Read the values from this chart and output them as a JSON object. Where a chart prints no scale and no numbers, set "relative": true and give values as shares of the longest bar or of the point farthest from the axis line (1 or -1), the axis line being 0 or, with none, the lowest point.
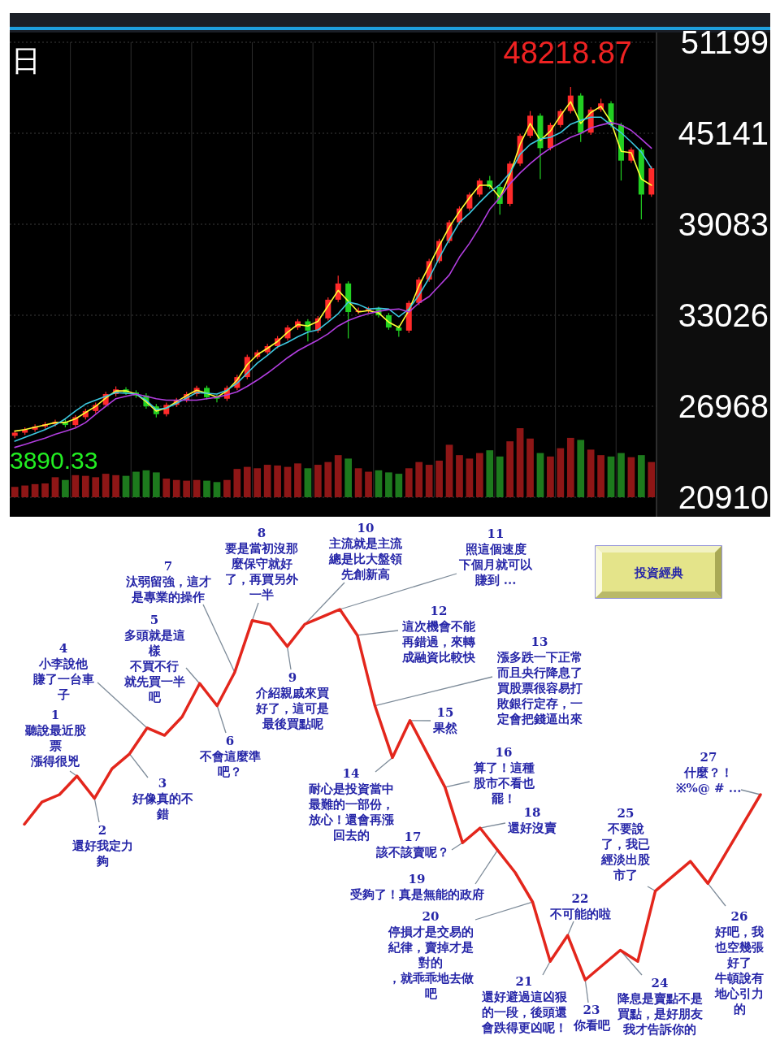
{
  "chart_data": [
    {
      "type": "candlestick",
      "categories": [
        null,
        null,
        null,
        null,
        null,
        null,
        null,
        null,
        null,
        null,
        null,
        null,
        null,
        null,
        null,
        null,
        null,
        null,
        null,
        null,
        null,
        null,
        null,
        null,
        null,
        null,
        null,
        null,
        null,
        null,
        null,
        null,
        null,
        null,
        null,
        null,
        null,
        null,
        null,
        null,
        null,
        null,
        null,
        null,
        null,
        null,
        null,
        null,
        null,
        null,
        null,
        null,
        null,
        null,
        null,
        null,
        null,
        null,
        null,
        null,
        null,
        null,
        null,
        null
      ],
      "ohlc": [
        [
          25000,
          25360,
          24850,
          25210
        ],
        [
          25210,
          25560,
          25060,
          25410
        ],
        [
          25410,
          25770,
          25260,
          25620
        ],
        [
          25620,
          25920,
          25470,
          25770
        ],
        [
          25770,
          26080,
          25620,
          25930
        ],
        [
          25930,
          26080,
          25570,
          25720
        ],
        [
          25720,
          26390,
          25570,
          26240
        ],
        [
          26240,
          26800,
          26090,
          26650
        ],
        [
          26650,
          27210,
          26500,
          27060
        ],
        [
          27060,
          27930,
          26910,
          27780
        ],
        [
          27780,
          28290,
          27630,
          28090
        ],
        [
          28090,
          28240,
          27730,
          27880
        ],
        [
          27880,
          28030,
          27530,
          27680
        ],
        [
          27680,
          27830,
          26810,
          26960
        ],
        [
          26960,
          27110,
          26230,
          26440
        ],
        [
          26440,
          27210,
          26290,
          27060
        ],
        [
          27060,
          27520,
          26910,
          27370
        ],
        [
          27370,
          27930,
          27220,
          27780
        ],
        [
          27780,
          28340,
          27630,
          28190
        ],
        [
          28190,
          28340,
          27420,
          27570
        ],
        [
          27570,
          27720,
          27220,
          27470
        ],
        [
          27470,
          28340,
          27320,
          28190
        ],
        [
          28190,
          29060,
          28040,
          28910
        ],
        [
          28910,
          30400,
          28760,
          30250
        ],
        [
          30250,
          30710,
          30100,
          30560
        ],
        [
          30560,
          31120,
          30410,
          30970
        ],
        [
          30970,
          31640,
          30820,
          31490
        ],
        [
          31490,
          32360,
          31340,
          32210
        ],
        [
          32210,
          32770,
          32060,
          32620
        ],
        [
          32620,
          32770,
          31280,
          32000
        ],
        [
          32000,
          32970,
          31850,
          32820
        ],
        [
          32820,
          34210,
          32670,
          34060
        ],
        [
          34060,
          35660,
          33910,
          35140
        ],
        [
          35140,
          35290,
          31490,
          33240
        ],
        [
          33240,
          33540,
          33090,
          33340
        ],
        [
          33340,
          33590,
          33190,
          33440
        ],
        [
          33440,
          33590,
          32880,
          33030
        ],
        [
          33030,
          33180,
          32060,
          32210
        ],
        [
          32210,
          32360,
          31590,
          32000
        ],
        [
          32000,
          34000,
          31850,
          33850
        ],
        [
          33850,
          35550,
          33700,
          35400
        ],
        [
          35400,
          36780,
          35250,
          36630
        ],
        [
          36630,
          38120,
          36480,
          37970
        ],
        [
          37970,
          39360,
          37820,
          39210
        ],
        [
          39210,
          40280,
          39060,
          40130
        ],
        [
          40130,
          41210,
          39980,
          41060
        ],
        [
          41060,
          42140,
          40910,
          41990
        ],
        [
          41990,
          42300,
          41420,
          41570
        ],
        [
          41570,
          41720,
          39720,
          40440
        ],
        [
          40440,
          43270,
          40290,
          43120
        ],
        [
          43120,
          45120,
          42970,
          44970
        ],
        [
          44970,
          46620,
          44820,
          46310
        ],
        [
          46310,
          46460,
          42090,
          44150
        ],
        [
          44150,
          45840,
          44000,
          45690
        ],
        [
          45690,
          46770,
          45540,
          46620
        ],
        [
          46620,
          48218.87,
          46470,
          47650
        ],
        [
          47650,
          47800,
          44560,
          45180
        ],
        [
          45180,
          46870,
          45030,
          46720
        ],
        [
          46720,
          47440,
          46570,
          47130
        ],
        [
          47130,
          47280,
          45540,
          45690
        ],
        [
          45690,
          45840,
          41990,
          43320
        ],
        [
          43320,
          44200,
          43170,
          44050
        ],
        [
          44050,
          44200,
          39410,
          41060
        ],
        [
          41060,
          42960,
          40910,
          42810
        ]
      ],
      "colors": [
        "#ff2a2a",
        "#ff2a2a",
        "#ff2a2a",
        "#ff2a2a",
        "#ff2a2a",
        "#22d022",
        "#ff2a2a",
        "#ff2a2a",
        "#ff2a2a",
        "#ff2a2a",
        "#ff2a2a",
        "#22d022",
        "#22d022",
        "#22d022",
        "#22d022",
        "#ff2a2a",
        "#ff2a2a",
        "#ff2a2a",
        "#ff2a2a",
        "#22d022",
        "#22d022",
        "#ff2a2a",
        "#ff2a2a",
        "#ff2a2a",
        "#ff2a2a",
        "#ff2a2a",
        "#ff2a2a",
        "#ff2a2a",
        "#ff2a2a",
        "#22d022",
        "#ff2a2a",
        "#ff2a2a",
        "#ff2a2a",
        "#22d022",
        "#ff2a2a",
        "#ff2a2a",
        "#22d022",
        "#22d022",
        "#22d022",
        "#ff2a2a",
        "#ff2a2a",
        "#ff2a2a",
        "#ff2a2a",
        "#ff2a2a",
        "#ff2a2a",
        "#ff2a2a",
        "#ff2a2a",
        "#22d022",
        "#22d022",
        "#ff2a2a",
        "#ff2a2a",
        "#ff2a2a",
        "#22d022",
        "#ff2a2a",
        "#ff2a2a",
        "#ff2a2a",
        "#22d022",
        "#ff2a2a",
        "#ff2a2a",
        "#22d022",
        "#22d022",
        "#ff2a2a",
        "#22d022",
        "#ff2a2a"
      ],
      "series": [
        {
          "type": "line",
          "color": "#ffff33",
          "values": [
            25310,
            25410,
            25570,
            25720,
            25880,
            25880,
            26130,
            26550,
            26960,
            27520,
            27990,
            27990,
            27780,
            27270,
            26650,
            26850,
            27270,
            27680,
            28040,
            27830,
            27570,
            27990,
            28710,
            29740,
            30400,
            30820,
            31280,
            31900,
            32410,
            32310,
            32620,
            33650,
            34680,
            33960,
            33240,
            33340,
            33180,
            32570,
            32210,
            33340,
            34990,
            36320,
            37660,
            38900,
            39930,
            40850,
            41680,
            41680,
            40850,
            42400,
            44400,
            45790,
            44660,
            45280,
            46310,
            47240,
            45790,
            46520,
            46930,
            45900,
            43940,
            43840,
            42090,
            41680
          ]
        },
        {
          "type": "line",
          "color": "#3cc8e0",
          "values": [
            24640,
            24900,
            25160,
            25410,
            25720,
            26130,
            26650,
            27110,
            27370,
            27630,
            27880,
            27830,
            27780,
            27370,
            26750,
            26850,
            27160,
            27520,
            27880,
            27830,
            27780,
            28040,
            28500,
            29170,
            29840,
            30350,
            30920,
            31230,
            31590,
            31900,
            32050,
            32570,
            33130,
            33900,
            33750,
            33440,
            33490,
            33440,
            32930,
            33440,
            34370,
            35500,
            36840,
            38070,
            39210,
            39820,
            40540,
            41210,
            41730,
            42500,
            43740,
            44400,
            44760,
            44870,
            45180,
            45740,
            46000,
            46210,
            46210,
            45690,
            45180,
            44560,
            43890,
            42810
          ]
        },
        {
          "type": "line",
          "color": "#b23ee0",
          "values": [
            24230,
            24430,
            24640,
            24850,
            25100,
            25310,
            25520,
            25880,
            26440,
            26960,
            27470,
            27630,
            27780,
            27630,
            27470,
            27370,
            27370,
            27370,
            27370,
            27470,
            27570,
            27730,
            27930,
            28290,
            28710,
            29170,
            29680,
            30200,
            30660,
            31020,
            31380,
            31790,
            32310,
            32670,
            32930,
            33130,
            33290,
            33390,
            33440,
            33240,
            33850,
            34270,
            34990,
            35710,
            36890,
            37820,
            38900,
            40080,
            40850,
            41780,
            42500,
            43120,
            43680,
            44150,
            44510,
            44870,
            45130,
            45490,
            45690,
            45850,
            45690,
            45330,
            44760,
            44150
          ]
        }
      ],
      "ylim": [
        20910,
        51199
      ],
      "yticks": [
        51199,
        45141,
        39083,
        33026,
        26968,
        20910
      ],
      "grid": true,
      "annotations": [
        "日",
        "48218.87",
        "3890.33"
      ]
    },
    {
      "type": "bar",
      "relative": true,
      "categories": [
        null,
        null,
        null,
        null,
        null,
        null,
        null,
        null,
        null,
        null,
        null,
        null,
        null,
        null,
        null,
        null,
        null,
        null,
        null,
        null,
        null,
        null,
        null,
        null,
        null,
        null,
        null,
        null,
        null,
        null,
        null,
        null,
        null,
        null,
        null,
        null,
        null,
        null,
        null,
        null,
        null,
        null,
        null,
        null,
        null,
        null,
        null,
        null,
        null,
        null,
        null,
        null,
        null,
        null,
        null,
        null,
        null,
        null,
        null,
        null,
        null,
        null,
        null,
        null
      ],
      "values": [
        0.15,
        0.17,
        0.19,
        0.2,
        0.29,
        0.25,
        0.32,
        0.31,
        0.29,
        0.34,
        0.32,
        0.31,
        0.37,
        0.39,
        0.36,
        0.27,
        0.25,
        0.24,
        0.25,
        0.24,
        0.22,
        0.25,
        0.41,
        0.44,
        0.42,
        0.47,
        0.46,
        0.44,
        0.49,
        0.42,
        0.47,
        0.51,
        0.61,
        0.56,
        0.42,
        0.37,
        0.39,
        0.36,
        0.34,
        0.42,
        0.51,
        0.47,
        0.53,
        0.76,
        0.61,
        0.56,
        0.64,
        0.68,
        0.59,
        0.81,
        1,
        0.85,
        0.64,
        0.59,
        0.71,
        0.86,
        0.83,
        0.69,
        0.61,
        0.59,
        0.64,
        0.58,
        0.61,
        0.51
      ],
      "colors": [
        "#8e1616",
        "#8e1616",
        "#8e1616",
        "#8e1616",
        "#8e1616",
        "#1d7a1d",
        "#8e1616",
        "#8e1616",
        "#8e1616",
        "#8e1616",
        "#8e1616",
        "#1d7a1d",
        "#1d7a1d",
        "#1d7a1d",
        "#1d7a1d",
        "#8e1616",
        "#8e1616",
        "#8e1616",
        "#8e1616",
        "#1d7a1d",
        "#1d7a1d",
        "#8e1616",
        "#8e1616",
        "#8e1616",
        "#8e1616",
        "#8e1616",
        "#8e1616",
        "#8e1616",
        "#8e1616",
        "#1d7a1d",
        "#8e1616",
        "#8e1616",
        "#8e1616",
        "#1d7a1d",
        "#8e1616",
        "#8e1616",
        "#1d7a1d",
        "#1d7a1d",
        "#1d7a1d",
        "#8e1616",
        "#8e1616",
        "#8e1616",
        "#8e1616",
        "#8e1616",
        "#8e1616",
        "#8e1616",
        "#8e1616",
        "#1d7a1d",
        "#1d7a1d",
        "#8e1616",
        "#8e1616",
        "#8e1616",
        "#1d7a1d",
        "#8e1616",
        "#8e1616",
        "#8e1616",
        "#1d7a1d",
        "#8e1616",
        "#8e1616",
        "#1d7a1d",
        "#1d7a1d",
        "#8e1616",
        "#1d7a1d",
        "#8e1616"
      ]
    },
    {
      "type": "line",
      "relative": true,
      "title": "投資經典",
      "categories": [
        null,
        null,
        null,
        null,
        null,
        null,
        null,
        null,
        null,
        null,
        null,
        null,
        null,
        null,
        null,
        null,
        null,
        null,
        null,
        null,
        null,
        null,
        null,
        null,
        null,
        null,
        null,
        null,
        null,
        null,
        null,
        null,
        null,
        null,
        null,
        null,
        null,
        null,
        null,
        null,
        null,
        null,
        null
      ],
      "series": [
        {
          "color": "#e3261c",
          "values": [
            0.42,
            0.48,
            0.5,
            0.55,
            0.49,
            0.57,
            0.61,
            0.68,
            0.66,
            0.71,
            0.8,
            0.74,
            0.83,
            0.97,
            0.96,
            0.9,
            0.96,
            0.98,
            1,
            0.93,
            0.74,
            0.6,
            0.7,
            0.61,
            0.52,
            0.37,
            0.41,
            0.35,
            0.29,
            0.21,
            0.05,
            0.12,
            0,
            0.04,
            0.08,
            0.05,
            0.24,
            0.28,
            0.32,
            0.26,
            0.34,
            0.42,
            0.5
          ]
        }
      ],
      "annotations": [
        "1",
        "聽說最近股票漲得很兇",
        "2",
        "還好我定力夠",
        "3",
        "好像真的不錯",
        "4",
        "小李說他賺了一台車子",
        "5",
        "多頭就是這樣不買不行就先買一半吧",
        "6",
        "不會這麼準吧？",
        "7",
        "汰弱留強，這才是專業的操作",
        "8",
        "要是當初沒那麼保守就好了，再買另外一半",
        "9",
        "介紹親戚來買好了，這可是最後買點呢",
        "10",
        "主流就是主流總是比大盤領先創新高",
        "11",
        "照這個速度下個月就可以賺到 ...",
        "12",
        "這次機會不能再錯過，來轉成融資比較快",
        "13",
        "漲多跌一下正常而且央行降息了買股票很容易打敗銀行定存，一定會把錢逼出來",
        "14",
        "耐心是投資當中最難的一部份，放心！還會再漲回去的",
        "15",
        "果然",
        "16",
        "算了！這種股市不看也罷！",
        "17",
        "該不該賣呢？",
        "18",
        "還好沒賣",
        "19",
        "受夠了！真是無能的政府",
        "20",
        "停損才是交易的紀律，賣掉才是對的，就乖乖地去做吧",
        "21",
        "還好避過這凶狠的一段，後頭還會跌得更凶呢！",
        "22",
        "不可能的啦",
        "23",
        "你看吧",
        "24",
        "降息是賣點不是買點，是好朋友我才告訴你的",
        "25",
        "不要說了，我已經淡出股市了",
        "26",
        "好吧，我也空幾張好了牛頓說有地心引力的",
        "27",
        "什麼？！※%@ # ..."
      ]
    }
  ]
}
